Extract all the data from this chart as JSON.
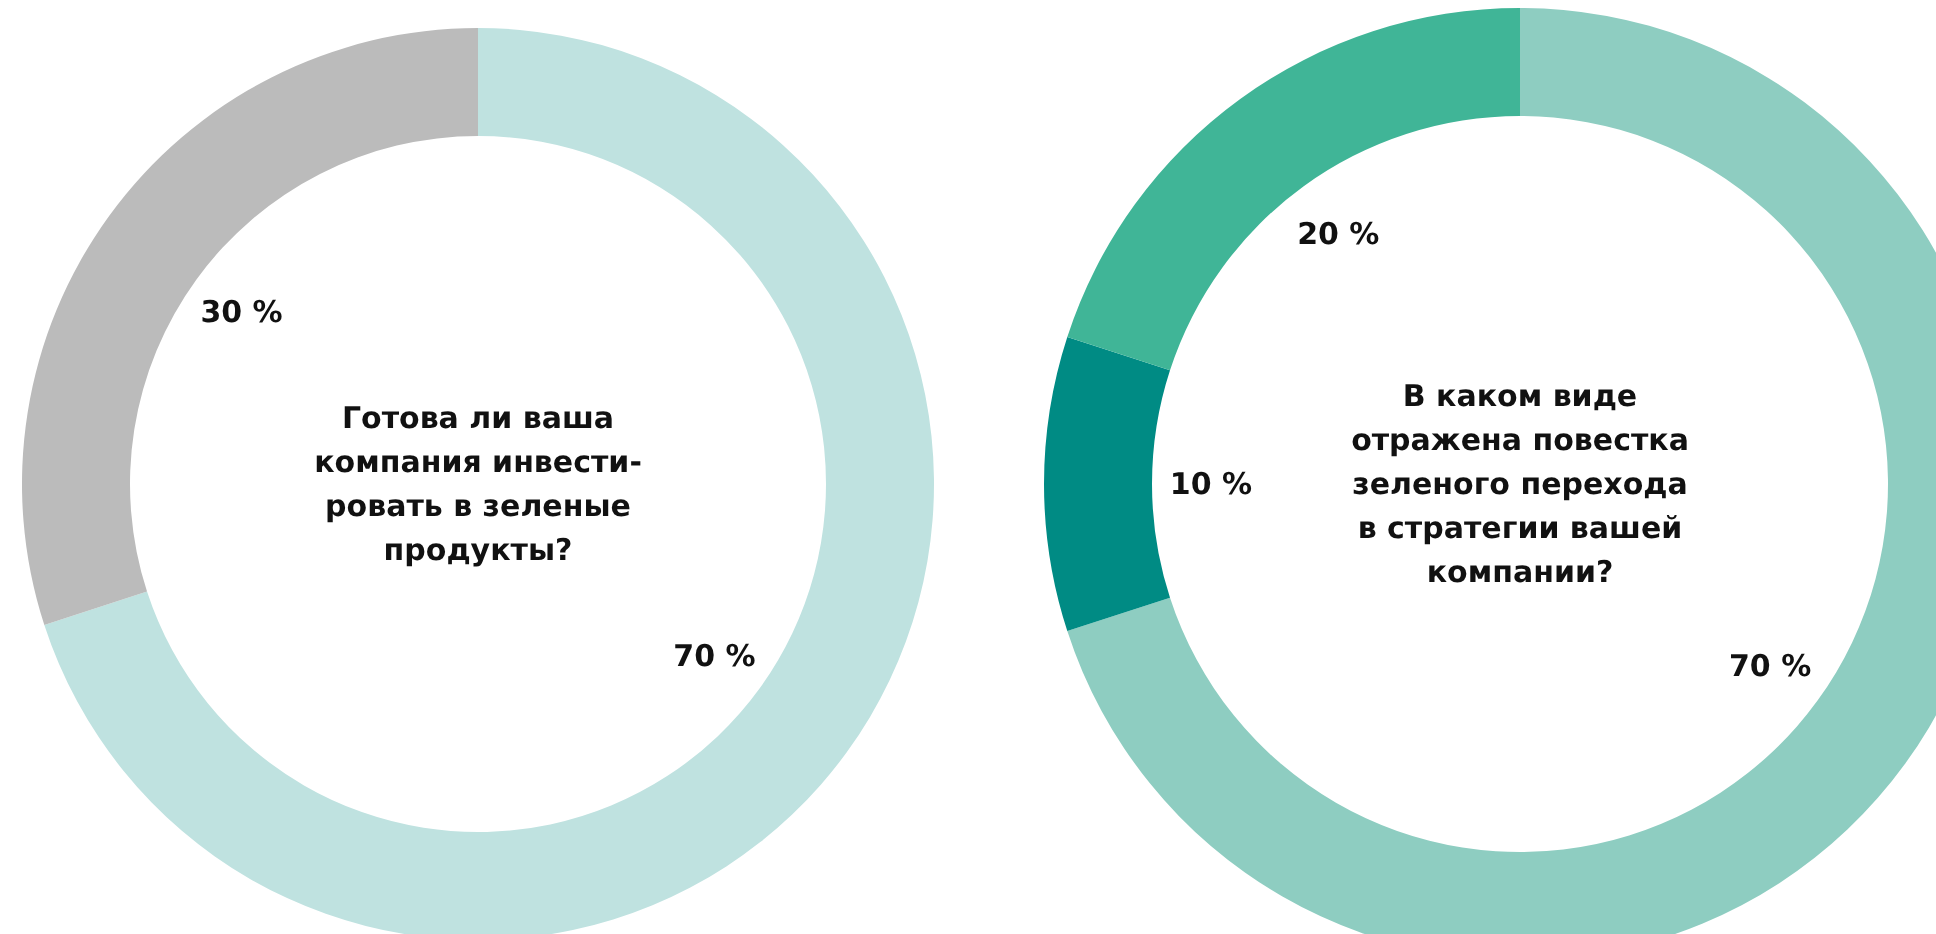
{
  "chart_data": [
    {
      "type": "donut",
      "title": "Готова ли ваша\nкомпания инвести-\nровать в зеленые\nпродукты?",
      "categories": [
        null,
        null
      ],
      "values": [
        70,
        30
      ],
      "colors": [
        "#bfe2e0",
        "#bbbbbb"
      ],
      "value_labels": [
        "70 %",
        "30 %"
      ]
    },
    {
      "type": "donut",
      "title": "В каком виде\nотражена повестка\nзеленого перехода\nв стратегии вашей\nкомпании?",
      "categories": [
        null,
        null,
        null
      ],
      "values": [
        70,
        10,
        20
      ],
      "colors": [
        "#8ecdc1",
        "#008b84",
        "#40b597"
      ],
      "value_labels": [
        "70 %",
        "10 %",
        "20 %"
      ]
    }
  ]
}
